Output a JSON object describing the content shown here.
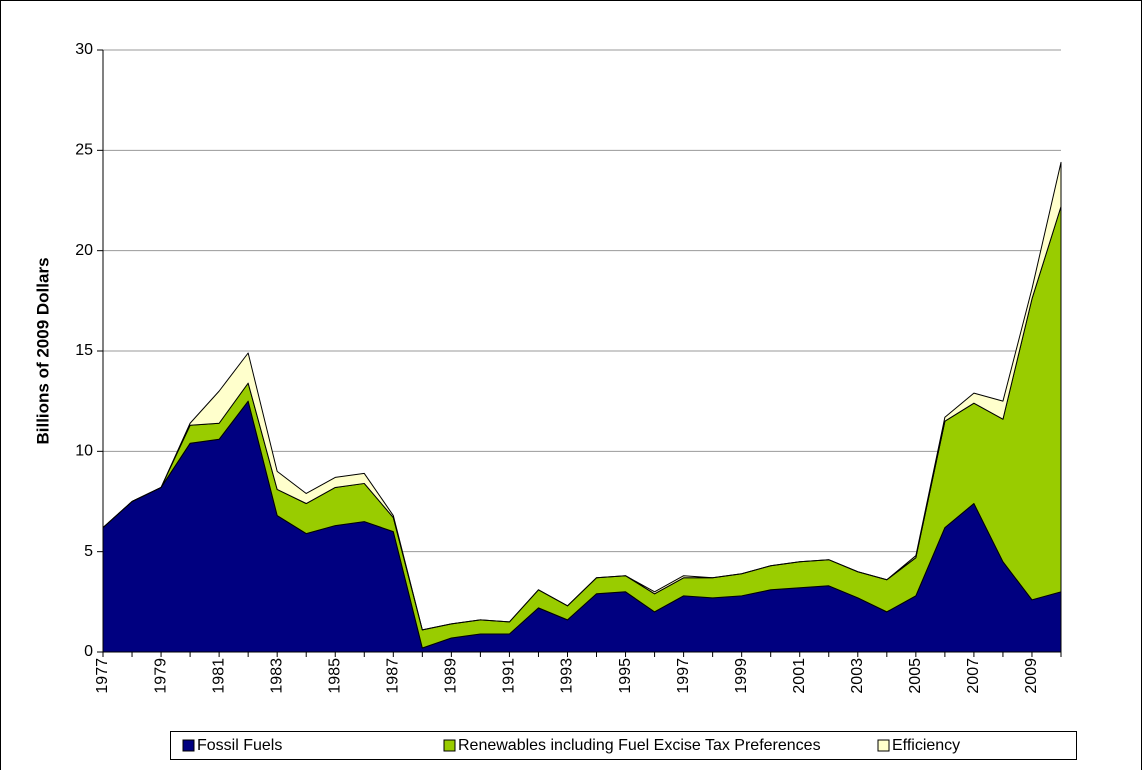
{
  "chart_data": {
    "type": "stacked-area",
    "ylabel": "Billions of 2009 Dollars",
    "categories": [
      "1977",
      null,
      "1979",
      null,
      "1981",
      null,
      "1983",
      null,
      "1985",
      null,
      "1987",
      null,
      "1989",
      null,
      "1991",
      null,
      "1993",
      null,
      "1995",
      null,
      "1997",
      null,
      "1999",
      null,
      "2001",
      null,
      "2003",
      null,
      "2005",
      null,
      "2007",
      null,
      "2009",
      null
    ],
    "series": [
      {
        "name": "Fossil Fuels",
        "color": "#000080",
        "values": [
          6.2,
          7.5,
          8.2,
          10.4,
          10.6,
          12.5,
          6.8,
          5.9,
          6.3,
          6.5,
          6.0,
          0.2,
          0.7,
          0.9,
          0.9,
          2.2,
          1.6,
          2.9,
          3.0,
          2.0,
          2.8,
          2.7,
          2.8,
          3.1,
          3.2,
          3.3,
          2.7,
          2.0,
          2.8,
          6.2,
          7.4,
          4.5,
          2.6,
          3.0
        ]
      },
      {
        "name": "Renewables including Fuel Excise Tax Preferences",
        "color": "#99cc00",
        "values": [
          0,
          0,
          0,
          0.9,
          0.8,
          0.9,
          1.3,
          1.5,
          1.9,
          1.9,
          0.7,
          0.9,
          0.7,
          0.7,
          0.6,
          0.9,
          0.7,
          0.8,
          0.8,
          0.9,
          0.9,
          1.0,
          1.1,
          1.2,
          1.3,
          1.3,
          1.3,
          1.6,
          1.9,
          5.3,
          5.0,
          7.1,
          15.0,
          19.2
        ]
      },
      {
        "name": "Efficiency",
        "color": "#ffffcc",
        "values": [
          0,
          0,
          0,
          0.1,
          1.6,
          1.5,
          0.9,
          0.5,
          0.5,
          0.5,
          0.1,
          0,
          0,
          0,
          0,
          0,
          0,
          0,
          0,
          0.1,
          0.1,
          0,
          0,
          0,
          0,
          0,
          0,
          0,
          0.1,
          0.2,
          0.5,
          0.9,
          0.5,
          2.2
        ]
      }
    ],
    "ylim": [
      0,
      30
    ],
    "yticks": [
      0,
      5,
      10,
      15,
      20,
      25,
      30
    ],
    "grid": true,
    "legend": "bottom"
  }
}
